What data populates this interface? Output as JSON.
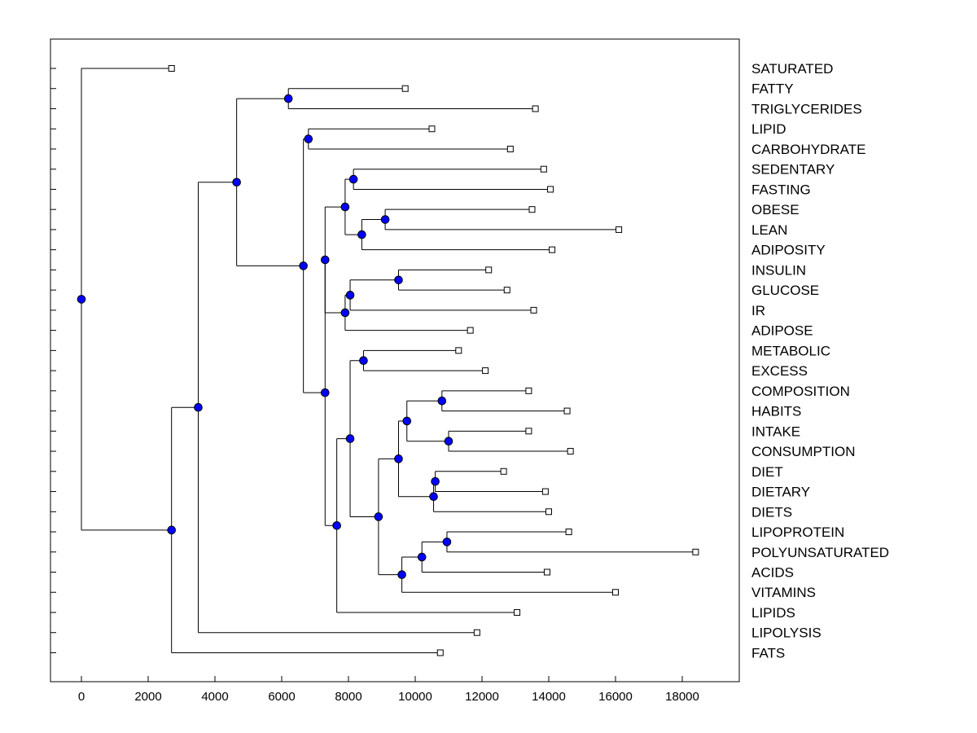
{
  "chart_data": {
    "type": "dendrogram",
    "title": "",
    "xlabel": "",
    "ylabel": "",
    "x_ticks": [
      0,
      2000,
      4000,
      6000,
      8000,
      10000,
      12000,
      14000,
      16000,
      18000
    ],
    "x_tick_labels": [
      "0",
      "2000",
      "4000",
      "6000",
      "8000",
      "10000",
      "12000",
      "14000",
      "16000",
      "18000"
    ],
    "xlim": [
      -900,
      19300
    ],
    "colors": {
      "node_fill": "#0000ff",
      "line": "#000000",
      "leaf_fill": "#ffffff"
    },
    "leaves": [
      {
        "label": "SATURATED",
        "x": 2700
      },
      {
        "label": "FATTY",
        "x": 9700
      },
      {
        "label": "TRIGLYCERIDES",
        "x": 13600
      },
      {
        "label": "LIPID",
        "x": 10500
      },
      {
        "label": "CARBOHYDRATE",
        "x": 12850
      },
      {
        "label": "SEDENTARY",
        "x": 13850
      },
      {
        "label": "FASTING",
        "x": 14050
      },
      {
        "label": "OBESE",
        "x": 13500
      },
      {
        "label": "LEAN",
        "x": 16100
      },
      {
        "label": "ADIPOSITY",
        "x": 14100
      },
      {
        "label": "INSULIN",
        "x": 12200
      },
      {
        "label": "GLUCOSE",
        "x": 12750
      },
      {
        "label": "IR",
        "x": 13550
      },
      {
        "label": "ADIPOSE",
        "x": 11650
      },
      {
        "label": "METABOLIC",
        "x": 11300
      },
      {
        "label": "EXCESS",
        "x": 12100
      },
      {
        "label": "COMPOSITION",
        "x": 13400
      },
      {
        "label": "HABITS",
        "x": 14550
      },
      {
        "label": "INTAKE",
        "x": 13400
      },
      {
        "label": "CONSUMPTION",
        "x": 14650
      },
      {
        "label": "DIET",
        "x": 12650
      },
      {
        "label": "DIETARY",
        "x": 13900
      },
      {
        "label": "DIETS",
        "x": 14000
      },
      {
        "label": "LIPOPROTEIN",
        "x": 14600
      },
      {
        "label": "POLYUNSATURATED",
        "x": 18400
      },
      {
        "label": "ACIDS",
        "x": 13950
      },
      {
        "label": "VITAMINS",
        "x": 16000
      },
      {
        "label": "LIPIDS",
        "x": 13050
      },
      {
        "label": "LIPOLYSIS",
        "x": 11850
      },
      {
        "label": "FATS",
        "x": 10750
      }
    ],
    "merges": [
      {
        "id": "n1",
        "x": 6200,
        "children": [
          1,
          2
        ]
      },
      {
        "id": "n2",
        "x": 6800,
        "children": [
          3,
          4
        ]
      },
      {
        "id": "n3",
        "x": 8150,
        "children": [
          5,
          6
        ]
      },
      {
        "id": "n4",
        "x": 9100,
        "children": [
          7,
          8
        ]
      },
      {
        "id": "n5",
        "x": 8400,
        "children": [
          "n4",
          9
        ]
      },
      {
        "id": "n6",
        "x": 7900,
        "children": [
          "n3",
          "n5"
        ]
      },
      {
        "id": "n7",
        "x": 9500,
        "children": [
          10,
          11
        ]
      },
      {
        "id": "n8",
        "x": 8050,
        "children": [
          "n7",
          12
        ]
      },
      {
        "id": "n9",
        "x": 7900,
        "children": [
          "n8",
          13
        ]
      },
      {
        "id": "n10",
        "x": 7300,
        "children": [
          "n6",
          "n9"
        ]
      },
      {
        "id": "n11",
        "x": 8450,
        "children": [
          14,
          15
        ]
      },
      {
        "id": "n12",
        "x": 10800,
        "children": [
          16,
          17
        ]
      },
      {
        "id": "n13",
        "x": 11000,
        "children": [
          18,
          19
        ]
      },
      {
        "id": "n14",
        "x": 9750,
        "children": [
          "n12",
          "n13"
        ]
      },
      {
        "id": "n15",
        "x": 10600,
        "children": [
          20,
          21
        ]
      },
      {
        "id": "n16",
        "x": 10550,
        "children": [
          "n15",
          22
        ]
      },
      {
        "id": "n17",
        "x": 9500,
        "children": [
          "n14",
          "n16"
        ]
      },
      {
        "id": "n18",
        "x": 10950,
        "children": [
          23,
          24
        ]
      },
      {
        "id": "n19",
        "x": 10200,
        "children": [
          "n18",
          25
        ]
      },
      {
        "id": "n20",
        "x": 9600,
        "children": [
          "n19",
          26
        ]
      },
      {
        "id": "n21",
        "x": 8900,
        "children": [
          "n17",
          "n20"
        ]
      },
      {
        "id": "n22",
        "x": 8050,
        "children": [
          "n11",
          "n21"
        ]
      },
      {
        "id": "n23",
        "x": 7650,
        "children": [
          "n22",
          27
        ]
      },
      {
        "id": "n24",
        "x": 7300,
        "children": [
          "n10",
          "n23"
        ]
      },
      {
        "id": "n25",
        "x": 6650,
        "children": [
          "n2",
          "n24"
        ]
      },
      {
        "id": "n26",
        "x": 4650,
        "children": [
          "n1",
          "n25"
        ]
      },
      {
        "id": "n27",
        "x": 3500,
        "children": [
          "n26",
          28
        ]
      },
      {
        "id": "n28",
        "x": 2700,
        "children": [
          "n27",
          29
        ]
      },
      {
        "id": "n29",
        "x": 0,
        "children": [
          0,
          "n28"
        ]
      }
    ]
  }
}
